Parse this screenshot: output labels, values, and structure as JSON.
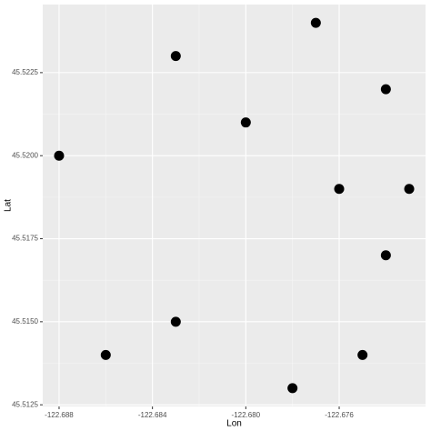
{
  "chart_data": {
    "type": "scatter",
    "x_label": "Lon",
    "y_label": "Lat",
    "x": [
      -122.688,
      -122.686,
      -122.683,
      -122.683,
      -122.68,
      -122.678,
      -122.677,
      -122.676,
      -122.675,
      -122.674,
      -122.674,
      -122.673
    ],
    "series": [
      {
        "color": "#000000",
        "values": [
          45.52,
          45.514,
          45.523,
          45.515,
          45.521,
          45.513,
          45.524,
          45.519,
          45.514,
          45.522,
          45.517,
          45.519
        ]
      }
    ],
    "xlim": [
      -122.6887,
      -122.6723
    ],
    "ylim": [
      45.51245,
      45.52455
    ],
    "xticks": [
      -122.688,
      -122.684,
      {
        "value": -122.68,
        "label": "-122.680"
      },
      -122.676
    ],
    "yticks": [
      45.5125,
      {
        "value": 45.515,
        "label": "45.5150"
      },
      45.5175,
      {
        "value": 45.52,
        "label": "45.5200"
      },
      45.5225
    ],
    "grid": true
  }
}
